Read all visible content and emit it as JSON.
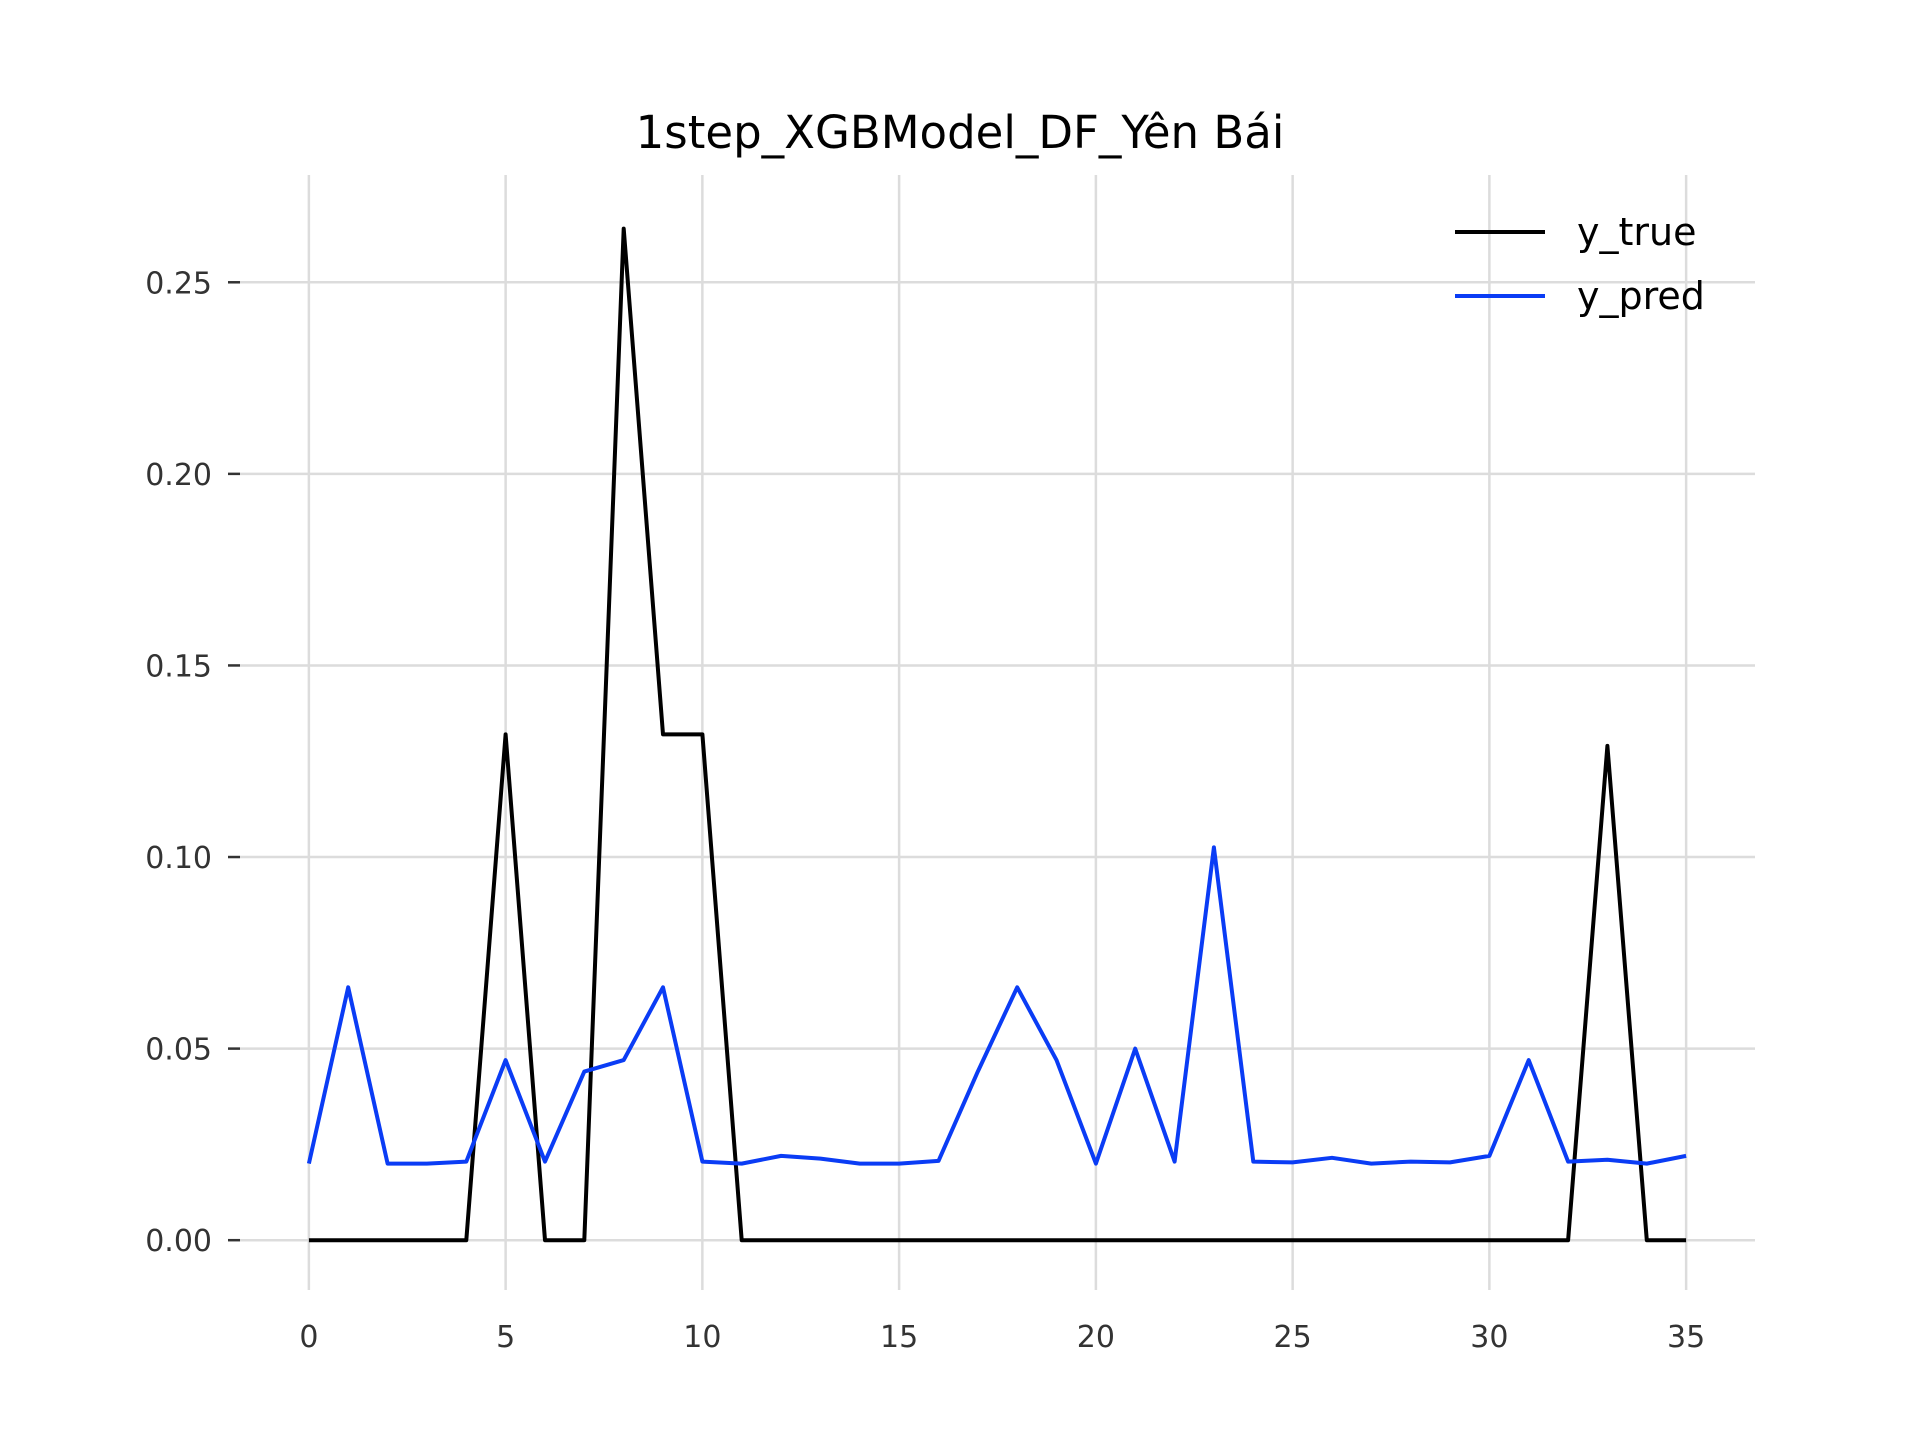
{
  "chart_data": {
    "type": "line",
    "title": "1step_XGBModel_DF_Yên Bái",
    "xlabel": "",
    "ylabel": "",
    "xlim": [
      -1.75,
      36.75
    ],
    "ylim": [
      -0.013,
      0.278
    ],
    "x_ticks": [
      0,
      5,
      10,
      15,
      20,
      25,
      30,
      35
    ],
    "x_tick_labels": [
      "0",
      "5",
      "10",
      "15",
      "20",
      "25",
      "30",
      "35"
    ],
    "y_ticks": [
      0.0,
      0.05,
      0.1,
      0.15,
      0.2,
      0.25
    ],
    "y_tick_labels": [
      "0.00",
      "0.05",
      "0.10",
      "0.15",
      "0.20",
      "0.25"
    ],
    "grid": true,
    "legend_position": "top-right",
    "x": [
      0,
      1,
      2,
      3,
      4,
      5,
      6,
      7,
      8,
      9,
      10,
      11,
      12,
      13,
      14,
      15,
      16,
      17,
      18,
      19,
      20,
      21,
      22,
      23,
      24,
      25,
      26,
      27,
      28,
      29,
      30,
      31,
      32,
      33,
      34,
      35
    ],
    "series": [
      {
        "name": "y_true",
        "color": "#000000",
        "values": [
          0,
          0,
          0,
          0,
          0,
          0.132,
          0,
          0,
          0.264,
          0.132,
          0.132,
          0,
          0,
          0,
          0,
          0,
          0,
          0,
          0,
          0,
          0,
          0,
          0,
          0,
          0,
          0,
          0,
          0,
          0,
          0,
          0,
          0,
          0,
          0.129,
          0,
          0
        ]
      },
      {
        "name": "y_pred",
        "color": "#0a3cf5",
        "values": [
          0.02,
          0.066,
          0.02,
          0.02,
          0.0205,
          0.047,
          0.0205,
          0.044,
          0.047,
          0.066,
          0.0205,
          0.02,
          0.022,
          0.0213,
          0.02,
          0.02,
          0.0207,
          0.044,
          0.066,
          0.047,
          0.02,
          0.05,
          0.0205,
          0.1025,
          0.0205,
          0.0203,
          0.0215,
          0.02,
          0.0205,
          0.0203,
          0.022,
          0.047,
          0.0205,
          0.021,
          0.02,
          0.022
        ]
      }
    ]
  }
}
